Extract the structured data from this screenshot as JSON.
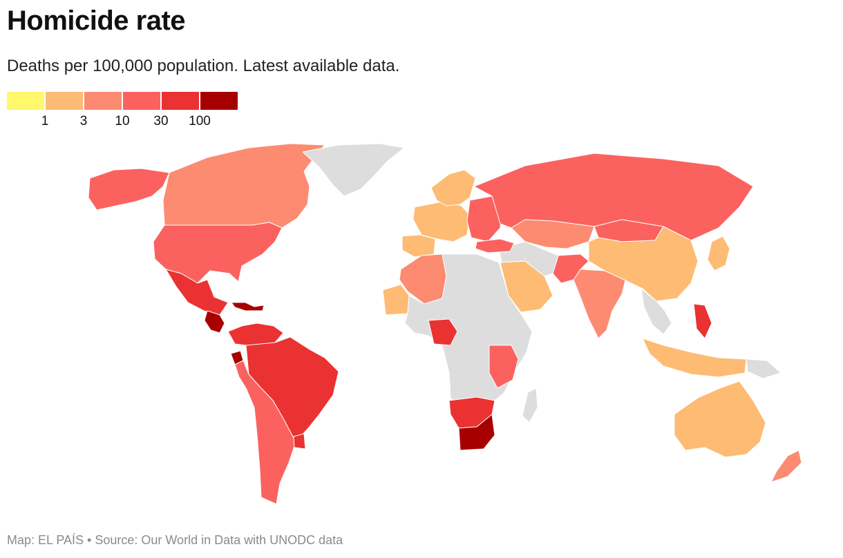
{
  "header": {
    "title": "Homicide rate",
    "subtitle": "Deaths per 100,000 population. Latest available data."
  },
  "legend": {
    "colors": [
      "#fef86a",
      "#fdbb73",
      "#fc8b72",
      "#fb625f",
      "#ea3232",
      "#a70000"
    ],
    "ticks": [
      "1",
      "3",
      "10",
      "30",
      "100"
    ]
  },
  "colors": {
    "no_data": "#dddddd",
    "border": "#ffffff"
  },
  "footer": {
    "credit": "Map: EL PAÍS • Source: Our World in Data with UNODC data"
  },
  "map_regions": [
    {
      "name": "Alaska",
      "rate_class": 3
    },
    {
      "name": "Canada",
      "rate_class": 2
    },
    {
      "name": "Greenland",
      "rate_class": null
    },
    {
      "name": "United States",
      "rate_class": 3
    },
    {
      "name": "Mexico",
      "rate_class": 4
    },
    {
      "name": "Central America",
      "rate_class": 5
    },
    {
      "name": "Caribbean",
      "rate_class": 5
    },
    {
      "name": "Colombia & Venezuela",
      "rate_class": 4
    },
    {
      "name": "Ecuador",
      "rate_class": 5
    },
    {
      "name": "Brazil",
      "rate_class": 4
    },
    {
      "name": "Peru & Chile & Argentina",
      "rate_class": 3
    },
    {
      "name": "Uruguay",
      "rate_class": 4
    },
    {
      "name": "Western Europe",
      "rate_class": 1
    },
    {
      "name": "Iberia",
      "rate_class": 1
    },
    {
      "name": "Scandinavia",
      "rate_class": 1
    },
    {
      "name": "Eastern Europe",
      "rate_class": 3
    },
    {
      "name": "Russia",
      "rate_class": 3
    },
    {
      "name": "Kazakhstan",
      "rate_class": 2
    },
    {
      "name": "Mongolia",
      "rate_class": 3
    },
    {
      "name": "China",
      "rate_class": 1
    },
    {
      "name": "Japan",
      "rate_class": 1
    },
    {
      "name": "India",
      "rate_class": 2
    },
    {
      "name": "Pakistan & Afghanistan",
      "rate_class": 3
    },
    {
      "name": "Saudi Arabia",
      "rate_class": 1
    },
    {
      "name": "Middle East",
      "rate_class": null
    },
    {
      "name": "Turkey",
      "rate_class": 3
    },
    {
      "name": "Algeria & Morocco",
      "rate_class": 2
    },
    {
      "name": "Mauritania",
      "rate_class": 1
    },
    {
      "name": "North & Central Africa",
      "rate_class": null
    },
    {
      "name": "Nigeria",
      "rate_class": 4
    },
    {
      "name": "East Africa",
      "rate_class": 3
    },
    {
      "name": "Namibia & Botswana",
      "rate_class": 4
    },
    {
      "name": "South Africa",
      "rate_class": 5
    },
    {
      "name": "Madagascar",
      "rate_class": null
    },
    {
      "name": "Southeast Asia",
      "rate_class": 1
    },
    {
      "name": "Myanmar & Thailand",
      "rate_class": null
    },
    {
      "name": "Philippines",
      "rate_class": 4
    },
    {
      "name": "Papua New Guinea",
      "rate_class": null
    },
    {
      "name": "Australia",
      "rate_class": 1
    },
    {
      "name": "New Zealand",
      "rate_class": 2
    }
  ]
}
